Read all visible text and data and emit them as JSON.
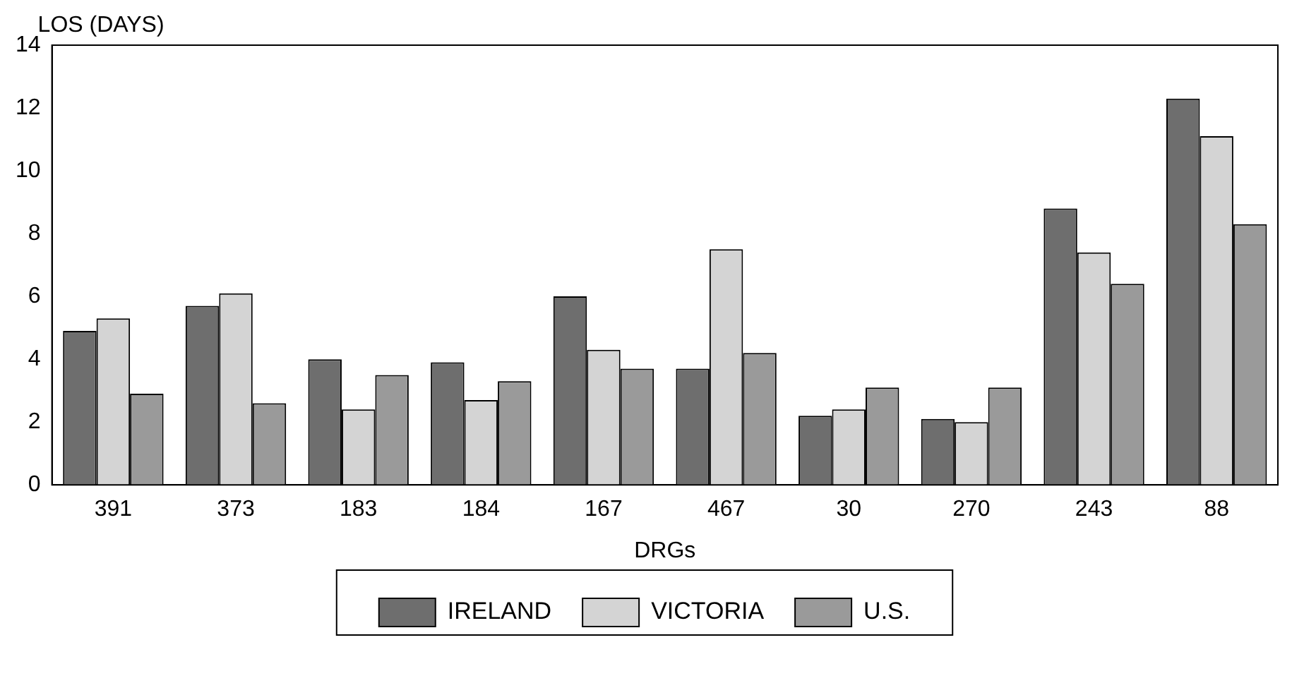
{
  "chart_data": {
    "type": "bar",
    "ylabel": "LOS (DAYS)",
    "xlabel": "DRGs",
    "categories": [
      "391",
      "373",
      "183",
      "184",
      "167",
      "467",
      "30",
      "270",
      "243",
      "88"
    ],
    "series": [
      {
        "name": "IRELAND",
        "color": "#6e6e6e",
        "values": [
          4.9,
          5.7,
          4.0,
          3.9,
          6.0,
          3.7,
          2.2,
          2.1,
          8.8,
          12.3
        ]
      },
      {
        "name": "VICTORIA",
        "color": "#d4d4d4",
        "values": [
          5.3,
          6.1,
          2.4,
          2.7,
          4.3,
          7.5,
          2.4,
          2.0,
          7.4,
          11.1
        ]
      },
      {
        "name": "U.S.",
        "color": "#9a9a9a",
        "values": [
          2.9,
          2.6,
          3.5,
          3.3,
          3.7,
          4.2,
          3.1,
          3.1,
          6.4,
          8.3
        ]
      }
    ],
    "ylim": [
      0,
      14
    ],
    "yticks": [
      0,
      2,
      4,
      6,
      8,
      10,
      12,
      14
    ],
    "grid": false,
    "legend": "bottom"
  }
}
